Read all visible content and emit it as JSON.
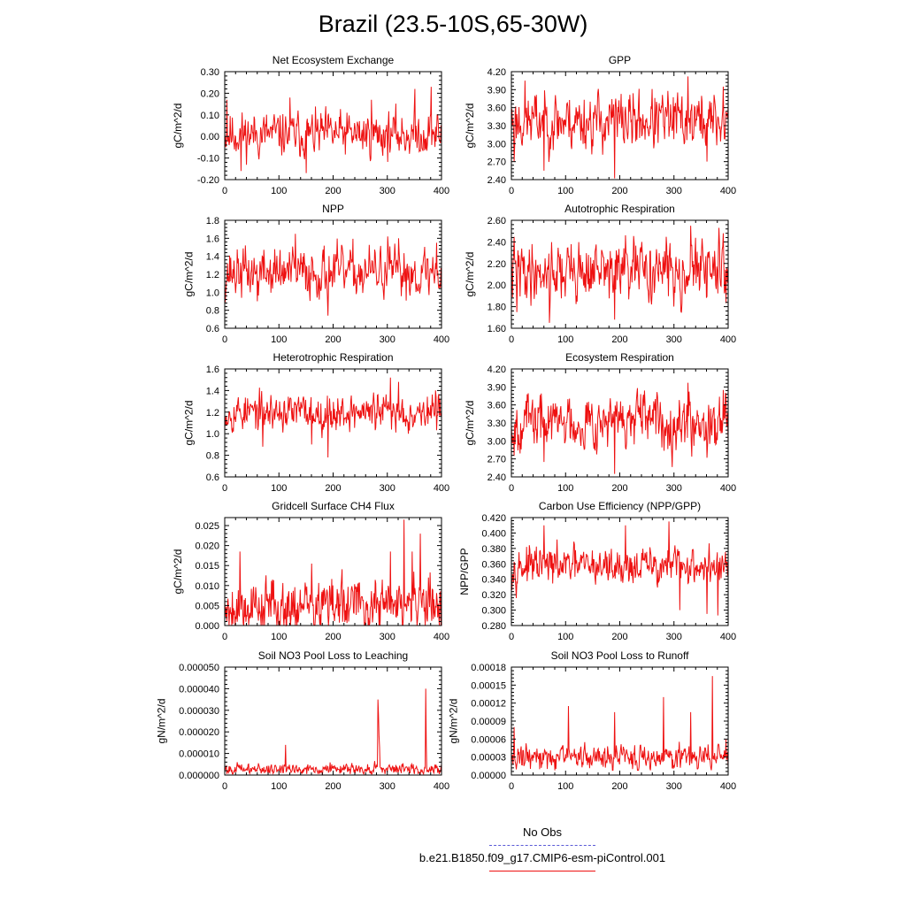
{
  "figure": {
    "title": "Brazil (23.5-10S,65-30W)",
    "legend": [
      {
        "label": "No Obs",
        "color": "#5b5bd6",
        "style": "dashed"
      },
      {
        "label": "b.e21.B1850.f09_g17.CMIP6-esm-piControl.001",
        "color": "#ee1111",
        "style": "solid"
      }
    ]
  },
  "chart_data": [
    {
      "type": "line",
      "title": "Net Ecosystem Exchange",
      "ylabel": "gC/m^2/d",
      "xlim": [
        0,
        400
      ],
      "ylim": [
        -0.2,
        0.3
      ],
      "xticks": [
        "0",
        "100",
        "200",
        "300",
        "400"
      ],
      "yticks": [
        "-0.20",
        "-0.10",
        "0.00",
        "0.10",
        "0.20",
        "0.30"
      ],
      "ytick_values": [
        -0.2,
        -0.1,
        0,
        0.1,
        0.2,
        0.3
      ],
      "series": [
        {
          "name": "b.e21.B1850.f09_g17.CMIP6-esm-piControl.001",
          "color": "#ee1111",
          "n_points": 400,
          "mean": 0.01,
          "amplitude": 0.06,
          "min": -0.17,
          "max": 0.23,
          "seed": 11,
          "spikes": [
            [
              4,
              0.17
            ],
            [
              30,
              -0.16
            ],
            [
              120,
              0.18
            ],
            [
              150,
              -0.17
            ],
            [
              270,
              0.17
            ],
            [
              350,
              0.22
            ],
            [
              380,
              0.23
            ]
          ]
        }
      ]
    },
    {
      "type": "line",
      "title": "GPP",
      "ylabel": "gC/m^2/d",
      "xlim": [
        0,
        400
      ],
      "ylim": [
        2.4,
        4.2
      ],
      "xticks": [
        "0",
        "100",
        "200",
        "300",
        "400"
      ],
      "yticks": [
        "2.40",
        "2.70",
        "3.00",
        "3.30",
        "3.60",
        "3.90",
        "4.20"
      ],
      "ytick_values": [
        2.4,
        2.7,
        3.0,
        3.3,
        3.6,
        3.9,
        4.2
      ],
      "series": [
        {
          "name": "b.e21.B1850.f09_g17.CMIP6-esm-piControl.001",
          "color": "#ee1111",
          "n_points": 400,
          "mean": 3.38,
          "amplitude": 0.28,
          "min": 2.42,
          "max": 4.12,
          "seed": 23,
          "spikes": [
            [
              5,
              2.7
            ],
            [
              25,
              4.05
            ],
            [
              60,
              2.55
            ],
            [
              190,
              2.42
            ],
            [
              325,
              4.12
            ],
            [
              360,
              2.7
            ],
            [
              390,
              3.95
            ]
          ]
        }
      ]
    },
    {
      "type": "line",
      "title": "NPP",
      "ylabel": "gC/m^2/d",
      "xlim": [
        0,
        400
      ],
      "ylim": [
        0.6,
        1.8
      ],
      "xticks": [
        "0",
        "100",
        "200",
        "300",
        "400"
      ],
      "yticks": [
        "0.6",
        "0.8",
        "1.0",
        "1.2",
        "1.4",
        "1.6",
        "1.8"
      ],
      "ytick_values": [
        0.6,
        0.8,
        1.0,
        1.2,
        1.4,
        1.6,
        1.8
      ],
      "series": [
        {
          "name": "b.e21.B1850.f09_g17.CMIP6-esm-piControl.001",
          "color": "#ee1111",
          "n_points": 400,
          "mean": 1.22,
          "amplitude": 0.16,
          "min": 0.72,
          "max": 1.66,
          "seed": 37,
          "spikes": [
            [
              60,
              0.9
            ],
            [
              130,
              1.65
            ],
            [
              190,
              0.74
            ],
            [
              300,
              1.62
            ],
            [
              320,
              1.6
            ],
            [
              390,
              1.55
            ]
          ]
        }
      ]
    },
    {
      "type": "line",
      "title": "Autotrophic Respiration",
      "ylabel": "gC/m^2/d",
      "xlim": [
        0,
        400
      ],
      "ylim": [
        1.6,
        2.6
      ],
      "xticks": [
        "0",
        "100",
        "200",
        "300",
        "400"
      ],
      "yticks": [
        "1.60",
        "1.80",
        "2.00",
        "2.20",
        "2.40",
        "2.60"
      ],
      "ytick_values": [
        1.6,
        1.8,
        2.0,
        2.2,
        2.4,
        2.6
      ],
      "series": [
        {
          "name": "b.e21.B1850.f09_g17.CMIP6-esm-piControl.001",
          "color": "#ee1111",
          "n_points": 400,
          "mean": 2.13,
          "amplitude": 0.16,
          "min": 1.62,
          "max": 2.55,
          "seed": 41,
          "spikes": [
            [
              10,
              1.75
            ],
            [
              70,
              1.65
            ],
            [
              190,
              1.68
            ],
            [
              330,
              2.55
            ],
            [
              390,
              2.48
            ]
          ]
        }
      ]
    },
    {
      "type": "line",
      "title": "Heterotrophic Respiration",
      "ylabel": "gC/m^2/d",
      "xlim": [
        0,
        400
      ],
      "ylim": [
        0.6,
        1.6
      ],
      "xticks": [
        "0",
        "100",
        "200",
        "300",
        "400"
      ],
      "yticks": [
        "0.6",
        "0.8",
        "1.0",
        "1.2",
        "1.4",
        "1.6"
      ],
      "ytick_values": [
        0.6,
        0.8,
        1.0,
        1.2,
        1.4,
        1.6
      ],
      "series": [
        {
          "name": "b.e21.B1850.f09_g17.CMIP6-esm-piControl.001",
          "color": "#ee1111",
          "n_points": 400,
          "mean": 1.2,
          "amplitude": 0.1,
          "min": 0.78,
          "max": 1.52,
          "seed": 53,
          "spikes": [
            [
              70,
              0.88
            ],
            [
              160,
              0.9
            ],
            [
              190,
              0.78
            ],
            [
              305,
              1.52
            ],
            [
              320,
              1.48
            ]
          ]
        }
      ]
    },
    {
      "type": "line",
      "title": "Ecosystem Respiration",
      "ylabel": "gC/m^2/d",
      "xlim": [
        0,
        400
      ],
      "ylim": [
        2.4,
        4.2
      ],
      "xticks": [
        "0",
        "100",
        "200",
        "300",
        "400"
      ],
      "yticks": [
        "2.40",
        "2.70",
        "3.00",
        "3.30",
        "3.60",
        "3.90",
        "4.20"
      ],
      "ytick_values": [
        2.4,
        2.7,
        3.0,
        3.3,
        3.6,
        3.9,
        4.2
      ],
      "series": [
        {
          "name": "b.e21.B1850.f09_g17.CMIP6-esm-piControl.001",
          "color": "#ee1111",
          "n_points": 400,
          "mean": 3.33,
          "amplitude": 0.26,
          "min": 2.45,
          "max": 3.97,
          "seed": 67,
          "spikes": [
            [
              5,
              2.75
            ],
            [
              60,
              2.65
            ],
            [
              190,
              2.45
            ],
            [
              325,
              3.97
            ],
            [
              360,
              2.72
            ],
            [
              390,
              3.85
            ]
          ]
        }
      ]
    },
    {
      "type": "line",
      "title": "Gridcell Surface CH4 Flux",
      "ylabel": "gC/m^2/d",
      "xlim": [
        0,
        400
      ],
      "ylim": [
        0.0,
        0.027
      ],
      "xticks": [
        "0",
        "100",
        "200",
        "300",
        "400"
      ],
      "yticks": [
        "0.000",
        "0.005",
        "0.010",
        "0.015",
        "0.020",
        "0.025"
      ],
      "ytick_values": [
        0,
        0.005,
        0.01,
        0.015,
        0.02,
        0.025
      ],
      "series": [
        {
          "name": "b.e21.B1850.f09_g17.CMIP6-esm-piControl.001",
          "color": "#ee1111",
          "n_points": 400,
          "mean": 0.005,
          "amplitude": 0.004,
          "min": 0.0,
          "max": 0.0265,
          "seed": 79,
          "spikes": [
            [
              28,
              0.0185
            ],
            [
              160,
              0.0155
            ],
            [
              305,
              0.0185
            ],
            [
              330,
              0.0265
            ],
            [
              345,
              0.0185
            ],
            [
              360,
              0.023
            ],
            [
              375,
              0.012
            ]
          ]
        }
      ]
    },
    {
      "type": "line",
      "title": "Carbon Use Efficiency (NPP/GPP)",
      "ylabel": "NPP/GPP",
      "xlim": [
        0,
        400
      ],
      "ylim": [
        0.28,
        0.42
      ],
      "xticks": [
        "0",
        "100",
        "200",
        "300",
        "400"
      ],
      "yticks": [
        "0.280",
        "0.300",
        "0.320",
        "0.340",
        "0.360",
        "0.380",
        "0.400",
        "0.420"
      ],
      "ytick_values": [
        0.28,
        0.3,
        0.32,
        0.34,
        0.36,
        0.38,
        0.4,
        0.42
      ],
      "series": [
        {
          "name": "b.e21.B1850.f09_g17.CMIP6-esm-piControl.001",
          "color": "#ee1111",
          "n_points": 400,
          "mean": 0.357,
          "amplitude": 0.014,
          "min": 0.293,
          "max": 0.415,
          "seed": 97,
          "spikes": [
            [
              60,
              0.41
            ],
            [
              210,
              0.41
            ],
            [
              290,
              0.415
            ],
            [
              310,
              0.3
            ],
            [
              360,
              0.295
            ],
            [
              380,
              0.293
            ]
          ]
        }
      ]
    },
    {
      "type": "line",
      "title": "Soil NO3 Pool Loss to Leaching",
      "ylabel": "gN/m^2/d",
      "xlim": [
        0,
        400
      ],
      "ylim": [
        0.0,
        5e-05
      ],
      "xticks": [
        "0",
        "100",
        "200",
        "300",
        "400"
      ],
      "yticks": [
        "0.000000",
        "0.000010",
        "0.000020",
        "0.000030",
        "0.000040",
        "0.000050"
      ],
      "ytick_values": [
        0,
        1e-05,
        2e-05,
        3e-05,
        4e-05,
        5e-05
      ],
      "series": [
        {
          "name": "b.e21.B1850.f09_g17.CMIP6-esm-piControl.001",
          "color": "#ee1111",
          "n_points": 400,
          "mean": 2.8e-06,
          "amplitude": 1.5e-06,
          "min": 5e-07,
          "max": 4e-05,
          "seed": 101,
          "spikes": [
            [
              112,
              1.4e-05
            ],
            [
              282,
              3.5e-05
            ],
            [
              283,
              2.8e-05
            ],
            [
              284,
              1.8e-05
            ],
            [
              285,
              1.3e-05
            ],
            [
              370,
              4e-05
            ],
            [
              371,
              1.4e-05
            ]
          ]
        }
      ]
    },
    {
      "type": "line",
      "title": "Soil NO3 Pool Loss to Runoff",
      "ylabel": "gN/m^2/d",
      "xlim": [
        0,
        400
      ],
      "ylim": [
        0.0,
        0.00018
      ],
      "xticks": [
        "0",
        "100",
        "200",
        "300",
        "400"
      ],
      "yticks": [
        "0.00000",
        "0.00003",
        "0.00006",
        "0.00009",
        "0.00012",
        "0.00015",
        "0.00018"
      ],
      "ytick_values": [
        0,
        3e-05,
        6e-05,
        9e-05,
        0.00012,
        0.00015,
        0.00018
      ],
      "series": [
        {
          "name": "b.e21.B1850.f09_g17.CMIP6-esm-piControl.001",
          "color": "#ee1111",
          "n_points": 400,
          "mean": 3e-05,
          "amplitude": 1.2e-05,
          "min": 8e-06,
          "max": 0.000165,
          "seed": 131,
          "spikes": [
            [
              5,
              8e-05
            ],
            [
              105,
              0.000115
            ],
            [
              190,
              0.000105
            ],
            [
              280,
              0.00013
            ],
            [
              330,
              0.000105
            ],
            [
              370,
              0.000165
            ],
            [
              395,
              6e-05
            ]
          ]
        }
      ]
    }
  ]
}
